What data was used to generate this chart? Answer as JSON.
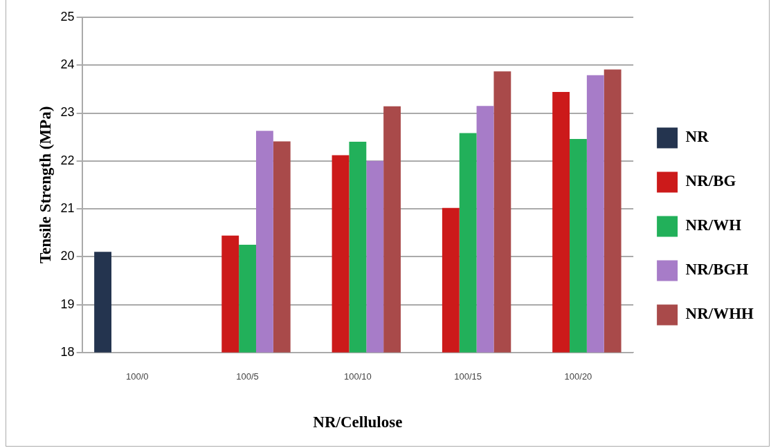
{
  "chart_data": {
    "type": "bar",
    "xlabel": "NR/Cellulose",
    "ylabel": "Tensile Strength (MPa)",
    "categories": [
      "100/0",
      "100/5",
      "100/10",
      "100/15",
      "100/20"
    ],
    "series": [
      {
        "name": "NR",
        "color": "#24344f",
        "values": [
          20.1,
          null,
          null,
          null,
          null
        ]
      },
      {
        "name": "NR/BG",
        "color": "#cc1a1a",
        "values": [
          null,
          20.44,
          22.12,
          21.02,
          23.44
        ]
      },
      {
        "name": "NR/WH",
        "color": "#22b05a",
        "values": [
          null,
          20.25,
          22.4,
          22.58,
          22.46
        ]
      },
      {
        "name": "NR/BGH",
        "color": "#a77cc8",
        "values": [
          null,
          22.63,
          22.0,
          23.15,
          23.79
        ]
      },
      {
        "name": "NR/WHH",
        "color": "#a94a4a",
        "values": [
          null,
          22.41,
          23.14,
          23.87,
          23.91
        ]
      }
    ],
    "ylim": [
      18,
      25
    ],
    "yticks": [
      18,
      19,
      20,
      21,
      22,
      23,
      24,
      25
    ],
    "grid": "y",
    "legend": "right"
  }
}
